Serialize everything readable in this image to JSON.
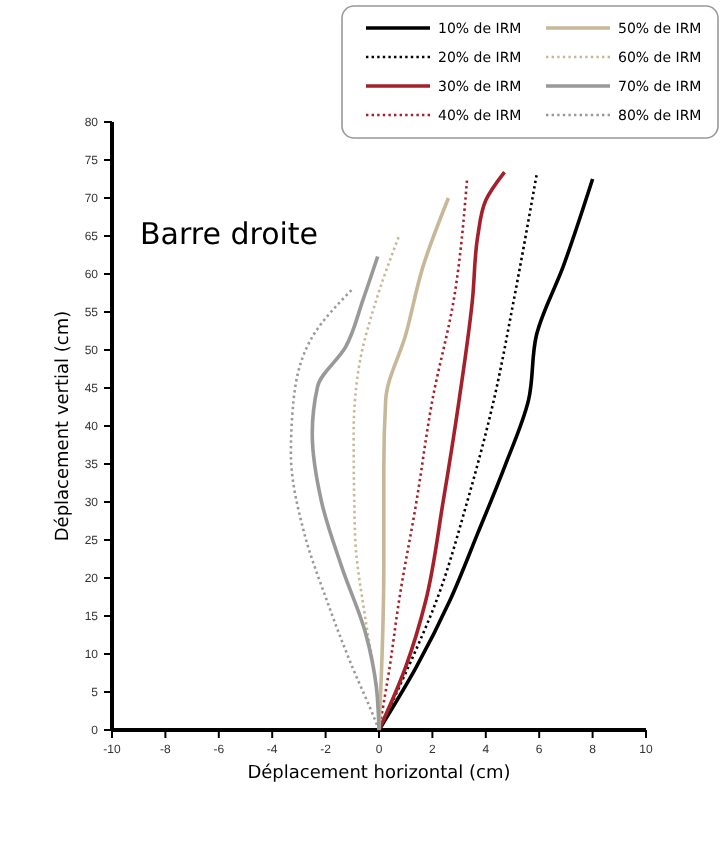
{
  "chart_data": {
    "type": "line",
    "title": "Barre droite",
    "xlabel": "Déplacement horizontal (cm)",
    "ylabel": "Déplacement vertial (cm)",
    "xlim": [
      -10,
      10
    ],
    "xticks": [
      -10,
      -8,
      -6,
      -4,
      -2,
      0,
      2,
      4,
      6,
      8,
      10
    ],
    "ylim": [
      0,
      80
    ],
    "yticks": [
      0,
      5,
      10,
      15,
      20,
      25,
      30,
      35,
      40,
      45,
      50,
      55,
      60,
      65,
      70,
      75,
      80
    ],
    "grid": false,
    "legend": "top right",
    "marker": "none",
    "series": [
      {
        "name": "10% de IRM",
        "color": "#000000",
        "line_style": "solid",
        "x": [
          0,
          1.4,
          2.65,
          3.7,
          4.7,
          5.6,
          5.9,
          6.9,
          8.0
        ],
        "values": [
          0,
          8.3,
          17,
          25.9,
          34.6,
          43.4,
          52,
          61,
          72.5
        ]
      },
      {
        "name": "20% de IRM",
        "color": "#000000",
        "line_style": "dotted",
        "x": [
          0,
          1.1,
          2.15,
          3.3,
          4.3,
          5.05,
          5.9
        ],
        "values": [
          0,
          8.3,
          17,
          30,
          43.4,
          56.6,
          73
        ]
      },
      {
        "name": "30% de IRM",
        "color": "#a5202a",
        "line_style": "solid",
        "x": [
          0,
          1.0,
          1.75,
          2.4,
          3.0,
          3.5,
          3.7,
          4.0,
          4.7
        ],
        "values": [
          0,
          8.3,
          17,
          30,
          43.4,
          56.6,
          65,
          69.7,
          73.4
        ]
      },
      {
        "name": "40% de IRM",
        "color": "#a5202a",
        "line_style": "dotted",
        "x": [
          0,
          0.4,
          0.75,
          1.4,
          2.0,
          2.8,
          3.3
        ],
        "values": [
          0,
          8.3,
          17,
          30,
          43.4,
          56.6,
          72.5
        ]
      },
      {
        "name": "50% de IRM",
        "color": "#c8b89a",
        "line_style": "solid",
        "x": [
          0,
          0.1,
          0.18,
          0.18,
          0.25,
          1.0,
          1.65,
          2.6
        ],
        "values": [
          0,
          8.3,
          21.5,
          34.6,
          43.4,
          52,
          61,
          70
        ]
      },
      {
        "name": "60% de IRM",
        "color": "#c8b89a",
        "line_style": "dotted",
        "x": [
          0,
          -0.1,
          -0.5,
          -0.9,
          -0.95,
          -0.75,
          -0.1,
          0.75
        ],
        "values": [
          0,
          5.7,
          14.4,
          25.9,
          39,
          47.8,
          56.6,
          65
        ]
      },
      {
        "name": "70% de IRM",
        "color": "#999999",
        "line_style": "solid",
        "x": [
          0,
          -0.1,
          -0.5,
          -1.4,
          -2.15,
          -2.5,
          -2.3,
          -1.25,
          -0.6,
          -0.05
        ],
        "values": [
          0,
          5.7,
          12.7,
          21.5,
          30,
          39,
          45.2,
          50.4,
          56.6,
          62.3
        ]
      },
      {
        "name": "80% de IRM",
        "color": "#999999",
        "line_style": "dotted",
        "x": [
          0,
          -0.25,
          -1.0,
          -1.95,
          -2.8,
          -3.3,
          -3.2,
          -2.45,
          -1.0
        ],
        "values": [
          0,
          2.2,
          8.3,
          17,
          25.9,
          36.4,
          43.4,
          52,
          58
        ]
      }
    ]
  }
}
